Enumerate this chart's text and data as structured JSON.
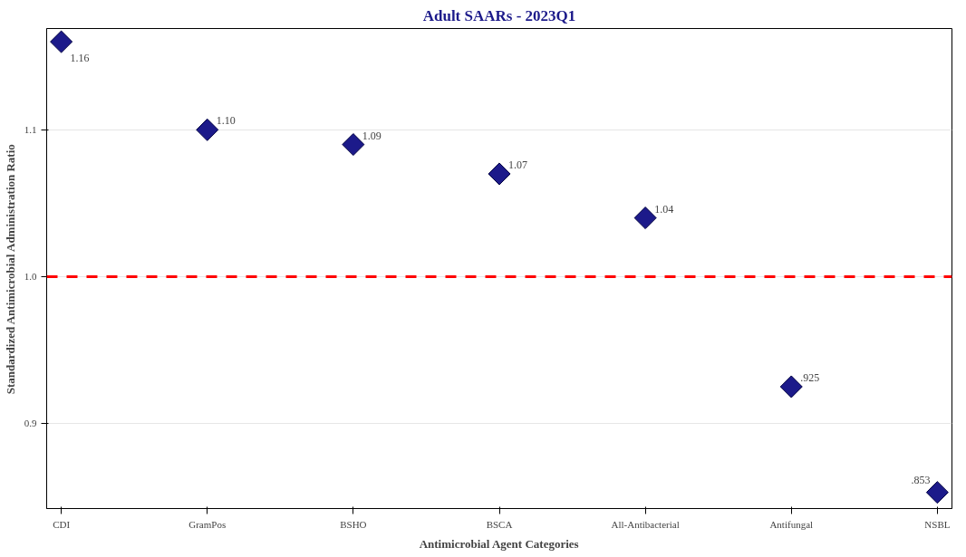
{
  "chart_data": {
    "type": "scatter",
    "title": "Adult SAARs - 2023Q1",
    "xlabel": "Antimicrobial Agent Categories",
    "ylabel": "Standardized Antimicrobial Administration Ratio",
    "categories": [
      "CDI",
      "GramPos",
      "BSHO",
      "BSCA",
      "All-Antibacterial",
      "Antifungal",
      "NSBL"
    ],
    "series": [
      {
        "color": "#1c1a8a",
        "values": [
          1.16,
          1.1,
          1.09,
          1.07,
          1.04,
          0.925,
          0.853
        ],
        "value_labels": [
          "1.16",
          "1.10",
          "1.09",
          "1.07",
          "1.04",
          ".925",
          ".853"
        ]
      }
    ],
    "ylim": [
      0.842,
      1.169
    ],
    "yticks": [
      {
        "value": 0.9,
        "label": "0.9"
      },
      {
        "value": 1.0,
        "label": "1.0"
      },
      {
        "value": 1.1,
        "label": "1.1"
      }
    ],
    "grid": "y",
    "marker": "diamond",
    "ref_lines": [
      {
        "axis": "y",
        "value": 1.0,
        "color": "#ff0000",
        "line_style": "dashed"
      }
    ]
  }
}
